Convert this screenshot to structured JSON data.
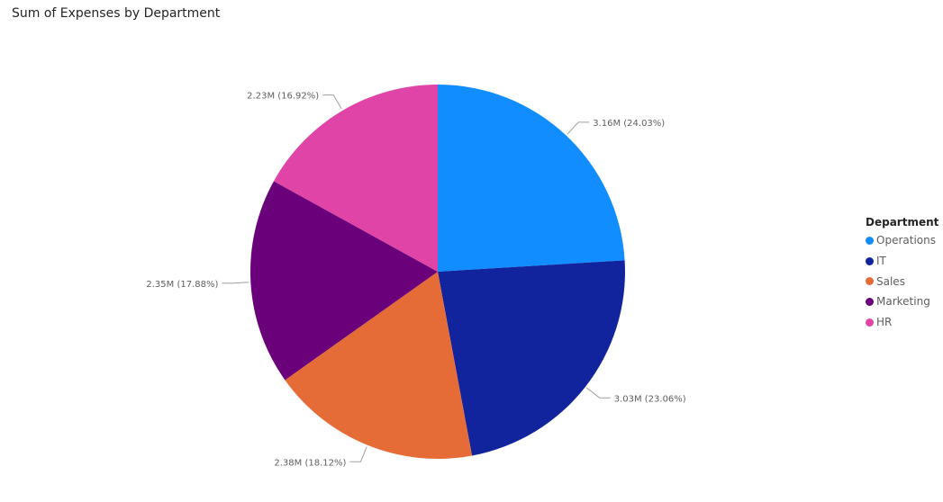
{
  "chart_data": {
    "type": "pie",
    "title": "Sum of Expenses by Department",
    "legend_title": "Department",
    "legend_position": "right",
    "slices": [
      {
        "name": "Operations",
        "value": 3.16,
        "label": "3.16M (24.03%)",
        "color": "#118DFF"
      },
      {
        "name": "IT",
        "value": 3.03,
        "label": "3.03M (23.06%)",
        "color": "#12239E"
      },
      {
        "name": "Sales",
        "value": 2.38,
        "label": "2.38M (18.12%)",
        "color": "#E66C37"
      },
      {
        "name": "Marketing",
        "value": 2.35,
        "label": "2.35M (17.88%)",
        "color": "#6B007B"
      },
      {
        "name": "HR",
        "value": 2.23,
        "label": "2.23M (16.92%)",
        "color": "#E044A7"
      }
    ]
  }
}
